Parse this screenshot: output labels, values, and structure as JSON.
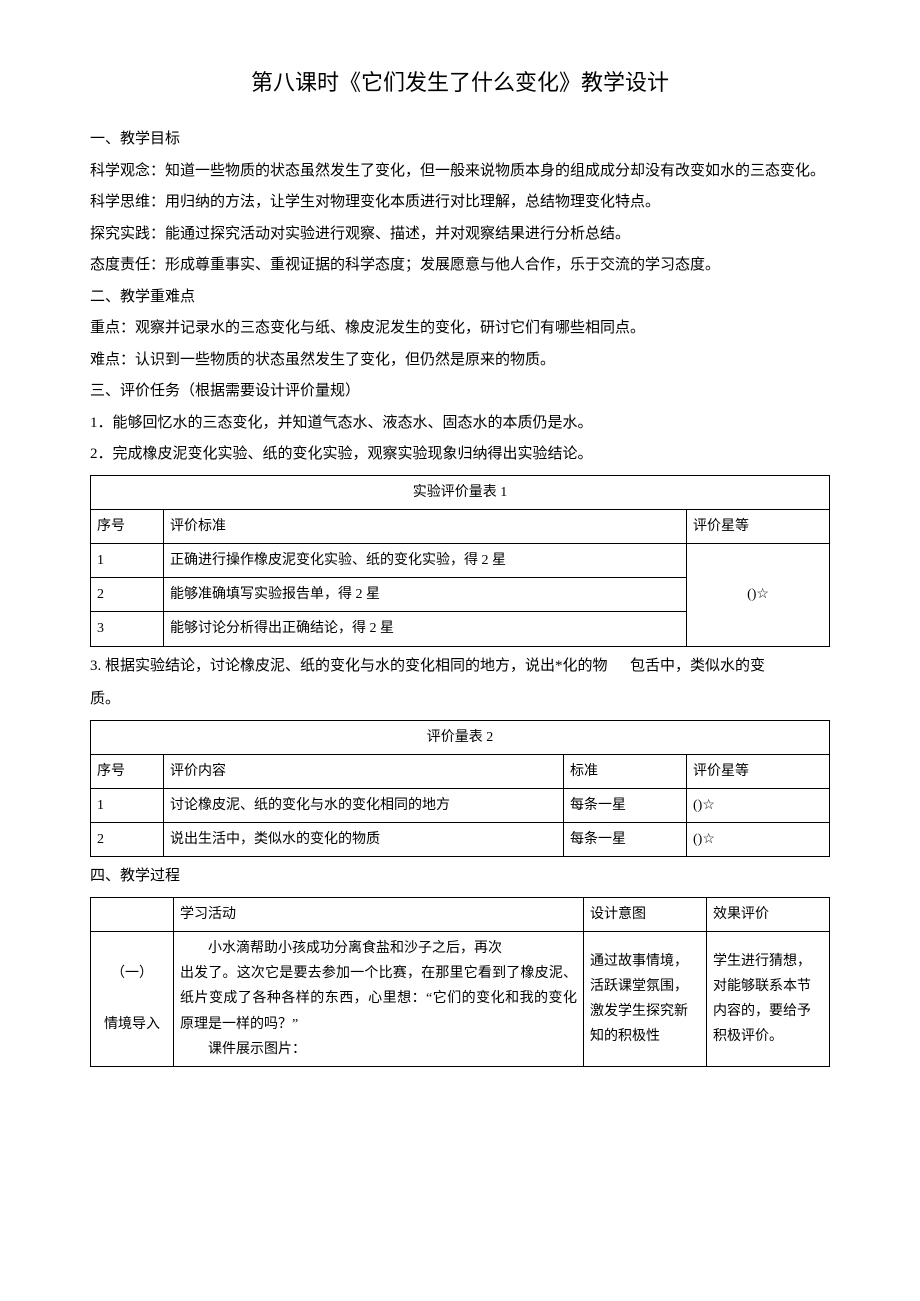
{
  "title": "第八课时《它们发生了什么变化》教学设计",
  "sec1": {
    "heading": "一、教学目标",
    "p1": "科学观念：知道一些物质的状态虽然发生了变化，但一般来说物质本身的组成成分却没有改变如水的三态变化。",
    "p2": "科学思维：用归纳的方法，让学生对物理变化本质进行对比理解，总结物理变化特点。",
    "p3": "探究实践：能通过探究活动对实验进行观察、描述，并对观察结果进行分析总结。",
    "p4": "态度责任：形成尊重事实、重视证据的科学态度；发展愿意与他人合作，乐于交流的学习态度。"
  },
  "sec2": {
    "heading": "二、教学重难点",
    "p1": "重点：观察并记录水的三态变化与纸、橡皮泥发生的变化，研讨它们有哪些相同点。",
    "p2": "难点：认识到一些物质的状态虽然发生了变化，但仍然是原来的物质。"
  },
  "sec3": {
    "heading": "三、评价任务（根据需要设计评价量规）",
    "p1": "1．能够回忆水的三态变化，并知道气态水、液态水、固态水的本质仍是水。",
    "p2": "2．完成橡皮泥变化实验、纸的变化实验，观察实验现象归纳得出实验结论。"
  },
  "table1": {
    "title": "实验评价量表 1",
    "h_seq": "序号",
    "h_std": "评价标准",
    "h_star": "评价星等",
    "rows": [
      {
        "n": "1",
        "std": "正确进行操作橡皮泥变化实验、纸的变化实验，得 2 星"
      },
      {
        "n": "2",
        "std": "能够准确填写实验报告单，得 2 星"
      },
      {
        "n": "3",
        "std": "能够讨论分析得出正确结论，得 2 星"
      }
    ],
    "stars": "()☆"
  },
  "between": {
    "left": "3. 根据实验结论，讨论橡皮泥、纸的变化与水的变化相同的地方，说出*化的物",
    "right": "包舌中，类似水的变",
    "tail": "质。"
  },
  "table2": {
    "title": "评价量表 2",
    "h_seq": "序号",
    "h_content": "评价内容",
    "h_std": "标准",
    "h_star": "评价星等",
    "rows": [
      {
        "n": "1",
        "c": "讨论橡皮泥、纸的变化与水的变化相同的地方",
        "s": "每条一星",
        "star": "()☆"
      },
      {
        "n": "2",
        "c": "说出生活中，类似水的变化的物质",
        "s": "每条一星",
        "star": "()☆"
      }
    ]
  },
  "sec4": {
    "heading": "四、教学过程"
  },
  "table3": {
    "h_activity": "学习活动",
    "h_intent": "设计意图",
    "h_eval": "效果评价",
    "row_label_top": "（一）",
    "row_label": "情境导入",
    "activity_p1": "小水滴帮助小孩成功分离食盐和沙子之后，再次",
    "activity_p2": "出发了。这次它是要去参加一个比赛，在那里它看到了橡皮泥、纸片变成了各种各样的东西，心里想：“它们的变化和我的变化原理是一样的吗？”",
    "activity_p3": "课件展示图片：",
    "intent": "通过故事情境，活跃课堂氛围，激发学生探究新知的积极性",
    "eval": "学生进行猜想，对能够联系本节内容的，要给予积极评价。"
  }
}
